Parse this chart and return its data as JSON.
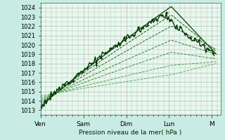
{
  "title": "Pression niveau de la mer( hPa )",
  "ylabel_values": [
    1013,
    1014,
    1015,
    1016,
    1017,
    1018,
    1019,
    1020,
    1021,
    1022,
    1023,
    1024
  ],
  "ylim": [
    1012.5,
    1024.5
  ],
  "xlim": [
    0,
    4.2
  ],
  "x_ticks": [
    0.0,
    1.0,
    2.0,
    3.0,
    4.0
  ],
  "x_tick_labels": [
    "Ven",
    "Sam",
    "Dim",
    "Lun",
    "M"
  ],
  "bg_outer": "#c8ece4",
  "bg_plot": "#e8f8f0",
  "grid_major_color": "#99ccaa",
  "grid_minor_color": "#ddaaaa",
  "dark_green": "#004400",
  "mid_green": "#226622",
  "light_green": "#44aa44"
}
